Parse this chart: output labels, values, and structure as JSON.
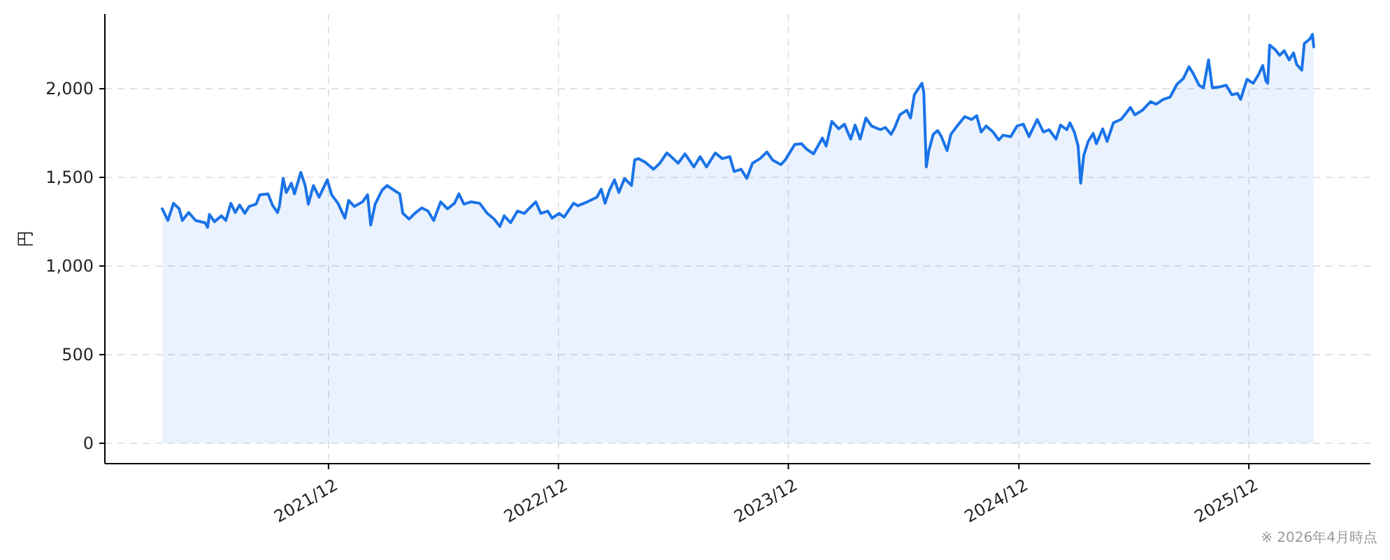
{
  "chart_data": {
    "type": "area",
    "ylabel": "円",
    "annotations": [
      "※ 2026年4月時点"
    ],
    "x": [
      "2021-03-12",
      "2021-03-21",
      "2021-03-30",
      "2021-04-08",
      "2021-04-13",
      "2021-04-23",
      "2021-05-04",
      "2021-05-19",
      "2021-05-23",
      "2021-05-26",
      "2021-06-03",
      "2021-06-14",
      "2021-06-21",
      "2021-06-29",
      "2021-07-06",
      "2021-07-13",
      "2021-07-21",
      "2021-07-28",
      "2021-08-08",
      "2021-08-14",
      "2021-08-27",
      "2021-09-03",
      "2021-09-11",
      "2021-09-14",
      "2021-09-20",
      "2021-09-25",
      "2021-10-03",
      "2021-10-08",
      "2021-10-18",
      "2021-10-25",
      "2021-10-30",
      "2021-11-07",
      "2021-11-16",
      "2021-11-29",
      "2021-12-06",
      "2021-12-16",
      "2021-12-27",
      "2022-01-02",
      "2022-01-11",
      "2022-01-24",
      "2022-02-01",
      "2022-02-06",
      "2022-02-13",
      "2022-02-24",
      "2022-03-04",
      "2022-03-15",
      "2022-03-24",
      "2022-03-29",
      "2022-04-08",
      "2022-04-17",
      "2022-04-28",
      "2022-05-08",
      "2022-05-17",
      "2022-05-28",
      "2022-06-08",
      "2022-06-19",
      "2022-06-26",
      "2022-07-04",
      "2022-07-15",
      "2022-07-29",
      "2022-08-10",
      "2022-08-21",
      "2022-08-30",
      "2022-09-06",
      "2022-09-16",
      "2022-09-27",
      "2022-10-08",
      "2022-10-15",
      "2022-10-26",
      "2022-11-03",
      "2022-11-14",
      "2022-11-21",
      "2022-12-02",
      "2022-12-10",
      "2022-12-25",
      "2023-01-01",
      "2023-01-16",
      "2023-01-31",
      "2023-02-07",
      "2023-02-13",
      "2023-02-20",
      "2023-02-28",
      "2023-03-07",
      "2023-03-16",
      "2023-03-27",
      "2023-04-01",
      "2023-04-07",
      "2023-04-18",
      "2023-05-01",
      "2023-05-11",
      "2023-05-22",
      "2023-05-29",
      "2023-06-09",
      "2023-06-20",
      "2023-07-04",
      "2023-07-14",
      "2023-07-24",
      "2023-08-07",
      "2023-08-18",
      "2023-08-30",
      "2023-09-06",
      "2023-09-17",
      "2023-09-26",
      "2023-10-05",
      "2023-10-17",
      "2023-10-28",
      "2023-11-06",
      "2023-11-19",
      "2023-11-26",
      "2023-12-11",
      "2023-12-22",
      "2023-12-30",
      "2024-01-10",
      "2024-01-24",
      "2024-01-30",
      "2024-02-08",
      "2024-02-19",
      "2024-02-28",
      "2024-03-09",
      "2024-03-16",
      "2024-03-24",
      "2024-04-02",
      "2024-04-11",
      "2024-04-25",
      "2024-05-03",
      "2024-05-12",
      "2024-05-18",
      "2024-05-26",
      "2024-06-06",
      "2024-06-12",
      "2024-06-18",
      "2024-06-26",
      "2024-06-30",
      "2024-07-03",
      "2024-07-07",
      "2024-07-11",
      "2024-07-18",
      "2024-07-25",
      "2024-07-31",
      "2024-08-09",
      "2024-08-15",
      "2024-08-26",
      "2024-09-06",
      "2024-09-17",
      "2024-09-25",
      "2024-10-02",
      "2024-10-10",
      "2024-10-21",
      "2024-10-30",
      "2024-11-06",
      "2024-11-18",
      "2024-11-28",
      "2024-12-08",
      "2024-12-17",
      "2024-12-30",
      "2025-01-09",
      "2025-01-18",
      "2025-01-29",
      "2025-02-05",
      "2025-02-15",
      "2025-02-20",
      "2025-02-27",
      "2025-03-05",
      "2025-03-09",
      "2025-03-14",
      "2025-03-21",
      "2025-03-29",
      "2025-04-03",
      "2025-04-13",
      "2025-04-20",
      "2025-04-30",
      "2025-05-12",
      "2025-05-20",
      "2025-05-27",
      "2025-06-03",
      "2025-06-15",
      "2025-06-28",
      "2025-07-07",
      "2025-07-18",
      "2025-07-29",
      "2025-08-09",
      "2025-08-19",
      "2025-08-28",
      "2025-09-04",
      "2025-09-13",
      "2025-09-20",
      "2025-09-28",
      "2025-10-04",
      "2025-10-15",
      "2025-10-26",
      "2025-11-04",
      "2025-11-13",
      "2025-11-18",
      "2025-11-28",
      "2025-12-08",
      "2025-12-17",
      "2025-12-23",
      "2025-12-28",
      "2025-12-31",
      "2026-01-03",
      "2026-01-12",
      "2026-01-19",
      "2026-01-26",
      "2026-02-03",
      "2026-02-10",
      "2026-02-15",
      "2026-02-23",
      "2026-02-27",
      "2026-03-08",
      "2026-03-12",
      "2026-03-14"
    ],
    "series": [
      {
        "color": "#1a73e8",
        "values": [
          1323,
          1257,
          1354,
          1323,
          1257,
          1302,
          1257,
          1244,
          1218,
          1291,
          1250,
          1283,
          1257,
          1354,
          1302,
          1344,
          1297,
          1336,
          1349,
          1402,
          1407,
          1344,
          1302,
          1336,
          1494,
          1415,
          1467,
          1407,
          1528,
          1454,
          1349,
          1454,
          1388,
          1486,
          1402,
          1354,
          1270,
          1370,
          1336,
          1362,
          1402,
          1231,
          1349,
          1428,
          1454,
          1428,
          1407,
          1297,
          1265,
          1297,
          1328,
          1310,
          1257,
          1362,
          1323,
          1354,
          1407,
          1349,
          1362,
          1354,
          1297,
          1265,
          1223,
          1283,
          1244,
          1310,
          1297,
          1323,
          1362,
          1297,
          1310,
          1270,
          1297,
          1276,
          1354,
          1340,
          1362,
          1388,
          1433,
          1354,
          1428,
          1486,
          1415,
          1494,
          1454,
          1598,
          1606,
          1585,
          1546,
          1580,
          1638,
          1617,
          1580,
          1633,
          1559,
          1617,
          1559,
          1638,
          1606,
          1617,
          1533,
          1546,
          1494,
          1580,
          1606,
          1643,
          1598,
          1572,
          1598,
          1685,
          1690,
          1659,
          1633,
          1722,
          1677,
          1816,
          1774,
          1800,
          1716,
          1795,
          1716,
          1835,
          1790,
          1769,
          1782,
          1743,
          1782,
          1853,
          1879,
          1835,
          1966,
          2010,
          2031,
          1979,
          1559,
          1651,
          1743,
          1764,
          1730,
          1651,
          1743,
          1795,
          1843,
          1827,
          1848,
          1756,
          1790,
          1756,
          1711,
          1738,
          1730,
          1790,
          1800,
          1730,
          1827,
          1756,
          1769,
          1716,
          1795,
          1769,
          1808,
          1756,
          1677,
          1467,
          1625,
          1703,
          1748,
          1690,
          1774,
          1703,
          1808,
          1827,
          1861,
          1895,
          1853,
          1879,
          1927,
          1913,
          1940,
          1953,
          2026,
          2058,
          2124,
          2084,
          2020,
          2005,
          2163,
          2005,
          2010,
          2020,
          1966,
          1974,
          1940,
          2053,
          2031,
          2084,
          2131,
          2045,
          2031,
          2247,
          2220,
          2189,
          2215,
          2163,
          2202,
          2137,
          2105,
          2255,
          2281,
          2307,
          2236
        ]
      }
    ],
    "xlim": [
      "2020-12-11",
      "2026-06-12"
    ],
    "ylim": [
      -115,
      2422
    ],
    "xticks": [
      {
        "value": "2021-12-01",
        "label": "2021/12"
      },
      {
        "value": "2022-12-01",
        "label": "2022/12"
      },
      {
        "value": "2023-12-01",
        "label": "2023/12"
      },
      {
        "value": "2024-12-01",
        "label": "2024/12"
      },
      {
        "value": "2025-12-01",
        "label": "2025/12"
      }
    ],
    "yticks": [
      0,
      500,
      {
        "value": 1000,
        "label": "1,000"
      },
      {
        "value": 1500,
        "label": "1,500"
      },
      {
        "value": 2000,
        "label": "2,000"
      }
    ],
    "grid": true
  }
}
